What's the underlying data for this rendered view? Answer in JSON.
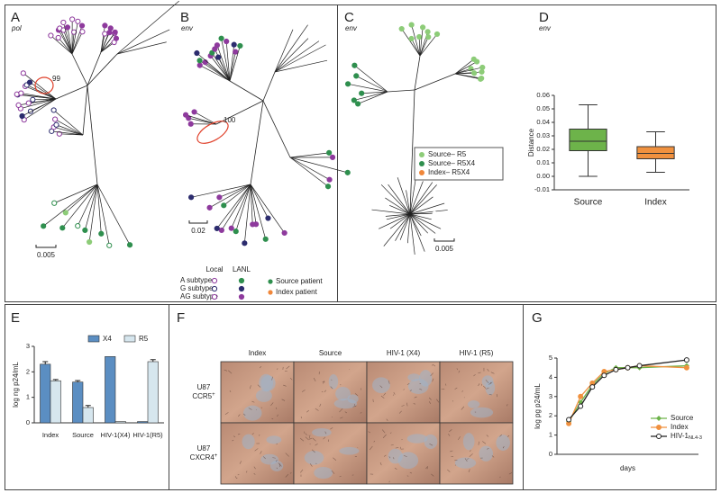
{
  "panels": [
    {
      "letter": "A",
      "subtitle": "pol",
      "bootstrap": "99",
      "scale": "0.005"
    },
    {
      "letter": "B",
      "subtitle": "env",
      "bootstrap": "100",
      "scale": "0.02",
      "legend": {
        "columns": [
          "Local",
          "LANL"
        ],
        "rows": [
          "A subtype",
          "G subtype",
          "AG subtype"
        ],
        "patients": [
          "Source patient",
          "Index patient"
        ]
      }
    },
    {
      "letter": "C",
      "subtitle": "env",
      "scale": "0.005",
      "legend": [
        "Source– R5",
        "Source– R5X4",
        "Index– R5X4"
      ]
    }
  ],
  "micrograph": {
    "letter": "F",
    "columns": [
      "Index",
      "Source",
      "HIV-1 (X4)",
      "HIV-1 (R5)"
    ],
    "rows": [
      {
        "cell": "U87",
        "receptor": "CCR5",
        "sup": "+"
      },
      {
        "cell": "U87",
        "receptor": "CXCR4",
        "sup": "+"
      }
    ]
  },
  "chart_data": [
    {
      "type": "box",
      "panel": "D",
      "subtitle": "env",
      "y_label": "Distance",
      "categories": [
        "Source",
        "Index"
      ],
      "colors": [
        "#6db34a",
        "#f0913f"
      ],
      "boxes": [
        {
          "min": 0.0,
          "q1": 0.019,
          "median": 0.026,
          "q3": 0.035,
          "max": 0.053
        },
        {
          "min": 0.003,
          "q1": 0.013,
          "median": 0.017,
          "q3": 0.022,
          "max": 0.033
        }
      ],
      "ylim": [
        -0.01,
        0.06
      ],
      "yticks": [
        -0.01,
        {
          "value": 0,
          "label": "0.00"
        },
        0.01,
        0.02,
        0.03,
        0.04,
        0.05,
        0.06
      ]
    },
    {
      "type": "bar",
      "panel": "E",
      "y_label": "log ng p24/mL",
      "categories": [
        "Index",
        "Source",
        "HIV-1(X4)",
        "HIV-1(R5)"
      ],
      "series": [
        {
          "name": "X4",
          "color": "#5b8ec2",
          "values": [
            2.3,
            1.6,
            2.6,
            0.05
          ],
          "errors": [
            0.1,
            0.06,
            0,
            0
          ]
        },
        {
          "name": "R5",
          "color": "#d6e6ee",
          "values": [
            1.65,
            0.6,
            0.05,
            2.4
          ],
          "errors": [
            0.05,
            0.08,
            0,
            0.08
          ]
        }
      ],
      "ylim": [
        0,
        3
      ],
      "yticks": [
        0,
        1,
        2,
        3
      ]
    },
    {
      "type": "line",
      "panel": "G",
      "y_label": "log pg p24/mL",
      "x_label": "days",
      "x": [
        1,
        2,
        3,
        4,
        5,
        6,
        7,
        11
      ],
      "xlim": [
        0,
        12
      ],
      "series": [
        {
          "name": "Source",
          "color": "#6db34a",
          "marker": "diamond",
          "values": [
            1.7,
            2.7,
            3.6,
            4.2,
            4.5,
            4.5,
            4.5,
            4.6
          ]
        },
        {
          "name": "Index",
          "color": "#f0913f",
          "marker": "circle",
          "values": [
            1.6,
            3.0,
            3.7,
            4.3,
            4.4,
            4.5,
            4.6,
            4.5
          ]
        },
        {
          "name": "HIV-1",
          "subscript": "NL4-3",
          "color": "#222222",
          "marker": "open",
          "values": [
            1.8,
            2.5,
            3.5,
            4.1,
            4.4,
            4.5,
            4.6,
            4.9
          ]
        }
      ],
      "ylim": [
        0,
        5
      ],
      "yticks": [
        0,
        1,
        2,
        3,
        4,
        5
      ]
    }
  ]
}
